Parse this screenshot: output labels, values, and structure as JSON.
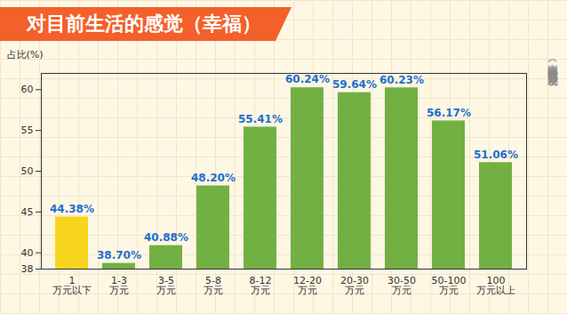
{
  "chart_data": {
    "type": "bar",
    "title": "对目前生活的感觉（幸福）",
    "annotations": [
      "《中国美好生活大调查》最新发现"
    ],
    "y_label": "占比(%)",
    "categories": [
      "1万元以下",
      "1-3万元",
      "3-5万元",
      "5-8万元",
      "8-12万元",
      "12-20万元",
      "20-30万元",
      "30-50万元",
      "50-100万元",
      "100万元以上"
    ],
    "values": [
      44.38,
      38.7,
      40.88,
      48.2,
      55.41,
      60.24,
      59.64,
      60.23,
      56.17,
      51.06
    ],
    "value_labels": [
      "44.38%",
      "38.70%",
      "40.88%",
      "48.20%",
      "55.41%",
      "60.24%",
      "59.64%",
      "60.23%",
      "56.17%",
      "51.06%"
    ],
    "colors": [
      "#f7d51d",
      "#72b043",
      "#72b043",
      "#72b043",
      "#72b043",
      "#72b043",
      "#72b043",
      "#72b043",
      "#72b043",
      "#72b043"
    ],
    "ylim": [
      38,
      62
    ],
    "yticks": [
      38,
      40,
      45,
      50,
      55,
      60
    ],
    "grid": false,
    "data_labels": true
  }
}
